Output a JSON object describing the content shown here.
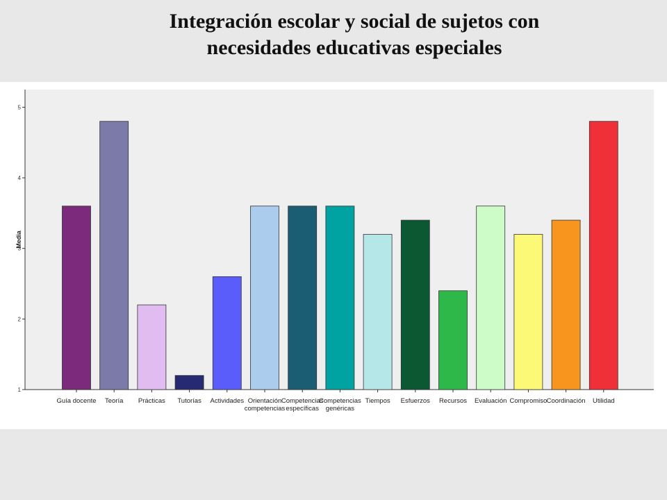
{
  "slide": {
    "title_line1": "Integración escolar y social de sujetos con",
    "title_line2": "necesidades educativas especiales"
  },
  "chart_data": {
    "type": "bar",
    "ylabel": "Media",
    "xlabel": "",
    "ylim": [
      1,
      5.25
    ],
    "yticks": [
      1,
      2,
      3,
      4,
      5
    ],
    "grid": false,
    "categories": [
      [
        "Guía docente"
      ],
      [
        "Teoría"
      ],
      [
        "Prácticas"
      ],
      [
        "Tutorías"
      ],
      [
        "Actividades"
      ],
      [
        "Orientación",
        "competencias"
      ],
      [
        "Competencias",
        "específicas"
      ],
      [
        "Competencias",
        "genéricas"
      ],
      [
        "Tiempos"
      ],
      [
        "Esfuerzos"
      ],
      [
        "Recursos"
      ],
      [
        "Evaluación"
      ],
      [
        "Compromiso"
      ],
      [
        "Coordinación"
      ],
      [
        "Utilidad"
      ]
    ],
    "values": [
      3.6,
      4.8,
      2.2,
      1.2,
      2.6,
      3.6,
      3.6,
      3.6,
      3.2,
      3.4,
      2.4,
      3.6,
      3.2,
      3.4,
      4.8
    ],
    "colors": [
      "#7b2a7c",
      "#7b7aa8",
      "#e1bcf1",
      "#262a72",
      "#5b5dfb",
      "#acccee",
      "#1b5d73",
      "#00a2a2",
      "#b6e7e8",
      "#0c5832",
      "#2fb84a",
      "#cdfcc8",
      "#fbf975",
      "#f7951f",
      "#f03038"
    ],
    "plot_background": "#efefef"
  }
}
